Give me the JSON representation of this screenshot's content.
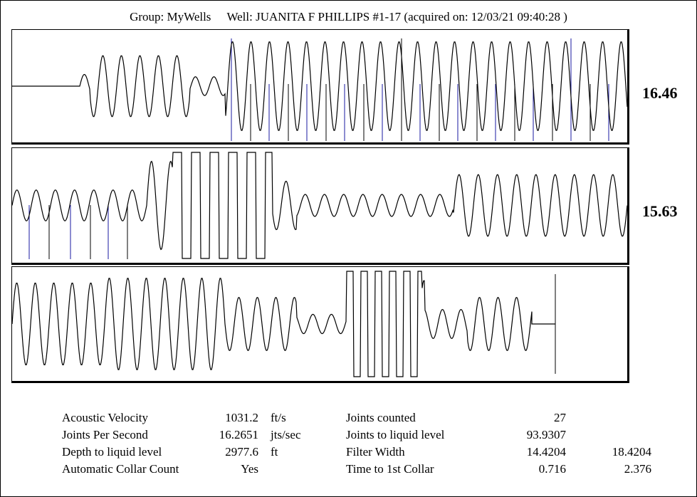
{
  "header": {
    "group": "Group: MyWells",
    "well": "Well: JUANITA F PHILLIPS #1-17 (acquired on: 12/03/21 09:40:28 )"
  },
  "panels": [
    {
      "rate": "16.46"
    },
    {
      "rate": "15.63"
    },
    {
      "rate": ""
    }
  ],
  "stats": {
    "left": [
      {
        "label": "Acoustic Velocity",
        "value": "1031.2",
        "unit": "ft/s"
      },
      {
        "label": "Joints Per Second",
        "value": "16.2651",
        "unit": "jts/sec"
      },
      {
        "label": "Depth to liquid level",
        "value": "2977.6",
        "unit": "ft"
      },
      {
        "label": "Automatic Collar Count",
        "value": "Yes",
        "unit": ""
      }
    ],
    "right": [
      {
        "label": "Joints counted",
        "value": "27",
        "extra": ""
      },
      {
        "label": "Joints to liquid level",
        "value": "93.9307",
        "extra": ""
      },
      {
        "label": "Filter Width",
        "value": "14.4204",
        "extra": "18.4204"
      },
      {
        "label": "Time to 1st Collar",
        "value": "0.716",
        "extra": "2.376"
      }
    ]
  },
  "colors": {
    "trace": "#000000",
    "collar_marker": "#1a1aa0"
  }
}
